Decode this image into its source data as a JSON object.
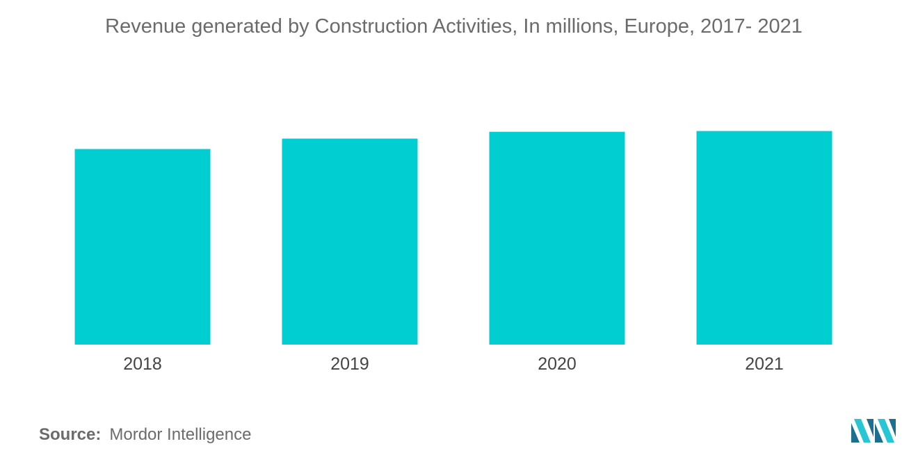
{
  "chart_data": {
    "type": "bar",
    "title": "Revenue generated by Construction Activities, In millions, Europe, 2017- 2021",
    "categories": [
      "2018",
      "2019",
      "2020",
      "2021"
    ],
    "values": [
      100,
      105.3,
      108.8,
      109.2
    ],
    "xlabel": "",
    "ylabel": "",
    "ylim": [
      0,
      130
    ],
    "grid": false,
    "legend": "none",
    "bar_color": "#00ced1"
  },
  "source": {
    "label": "Source:",
    "text": "Mordor Intelligence"
  },
  "colors": {
    "text": "#6b6b6b",
    "logo_dark": "#1e6f8f",
    "logo_light": "#26c6d4"
  }
}
